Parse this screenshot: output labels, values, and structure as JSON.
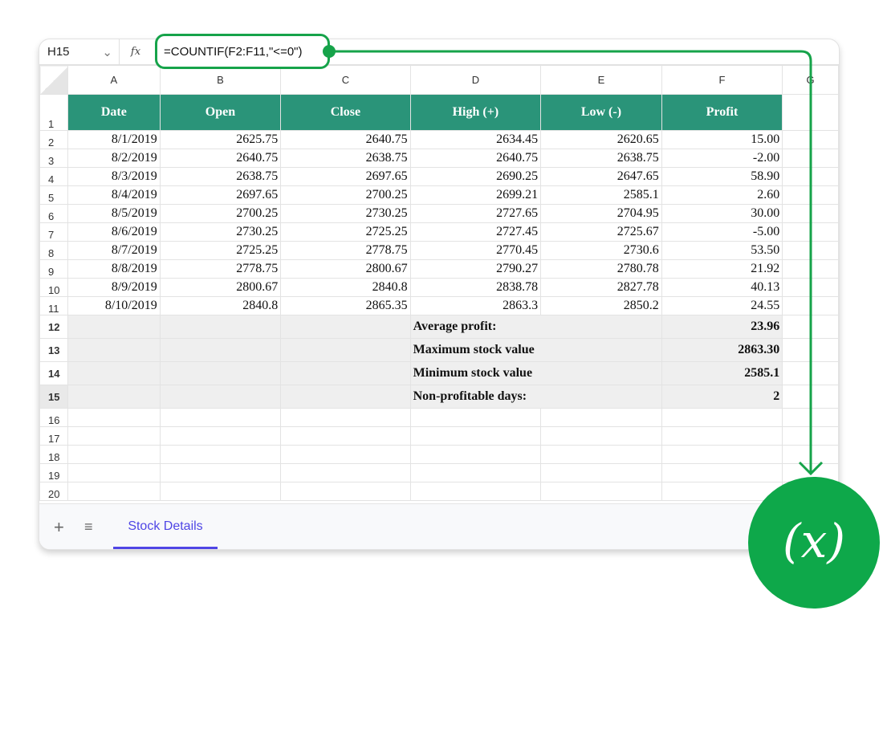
{
  "formula_bar": {
    "cell_ref": "H15",
    "fx_label": "fx",
    "formula": "=COUNTIF(F2:F11,\"<=0\")"
  },
  "columns": [
    "A",
    "B",
    "C",
    "D",
    "E",
    "F",
    "G"
  ],
  "headers": [
    "Date",
    "Open",
    "Close",
    "High (+)",
    "Low (-)",
    "Profit"
  ],
  "rows": [
    [
      "8/1/2019",
      "2625.75",
      "2640.75",
      "2634.45",
      "2620.65",
      "15.00"
    ],
    [
      "8/2/2019",
      "2640.75",
      "2638.75",
      "2640.75",
      "2638.75",
      "-2.00"
    ],
    [
      "8/3/2019",
      "2638.75",
      "2697.65",
      "2690.25",
      "2647.65",
      "58.90"
    ],
    [
      "8/4/2019",
      "2697.65",
      "2700.25",
      "2699.21",
      "2585.1",
      "2.60"
    ],
    [
      "8/5/2019",
      "2700.25",
      "2730.25",
      "2727.65",
      "2704.95",
      "30.00"
    ],
    [
      "8/6/2019",
      "2730.25",
      "2725.25",
      "2727.45",
      "2725.67",
      "-5.00"
    ],
    [
      "8/7/2019",
      "2725.25",
      "2778.75",
      "2770.45",
      "2730.6",
      "53.50"
    ],
    [
      "8/8/2019",
      "2778.75",
      "2800.67",
      "2790.27",
      "2780.78",
      "21.92"
    ],
    [
      "8/9/2019",
      "2800.67",
      "2840.8",
      "2838.78",
      "2827.78",
      "40.13"
    ],
    [
      "8/10/2019",
      "2840.8",
      "2865.35",
      "2863.3",
      "2850.2",
      "24.55"
    ]
  ],
  "summary": [
    {
      "label": "Average profit:",
      "value": "23.96"
    },
    {
      "label": "Maximum stock value",
      "value": "2863.30"
    },
    {
      "label": "Minimum stock value",
      "value": "2585.1"
    },
    {
      "label": "Non-profitable days:",
      "value": "2"
    }
  ],
  "row_numbers": [
    "1",
    "2",
    "3",
    "4",
    "5",
    "6",
    "7",
    "8",
    "9",
    "10",
    "11",
    "12",
    "13",
    "14",
    "15",
    "16",
    "17",
    "18",
    "19",
    "20"
  ],
  "sheet_tab": "Stock Details",
  "badge_symbol": "(x)",
  "colors": {
    "header_bg": "#2a9479",
    "accent": "#16a34a",
    "tab": "#4f46e5"
  }
}
